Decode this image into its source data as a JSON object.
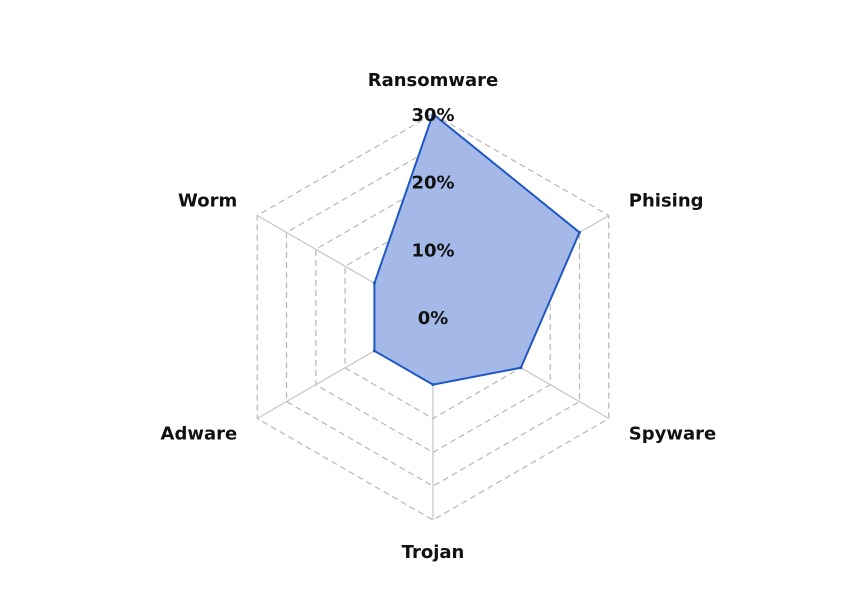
{
  "chart_data": {
    "type": "radar",
    "categories": [
      "Ransomware",
      "Phising",
      "Spyware",
      "Trojan",
      "Adware",
      "Worm"
    ],
    "series": [
      {
        "values": [
          30,
          25,
          15,
          10,
          10,
          10
        ]
      }
    ],
    "r_range": [
      0,
      30
    ],
    "ticks": [
      0,
      10,
      20,
      30
    ],
    "tick_labels": [
      "0%",
      "10%",
      "20%",
      "30%"
    ],
    "grid": true,
    "colors": {
      "fill": "#a3b8e8",
      "stroke": "#1f57c3",
      "grid": "#b5b5b5",
      "spokes": "#c4c4c4"
    }
  }
}
